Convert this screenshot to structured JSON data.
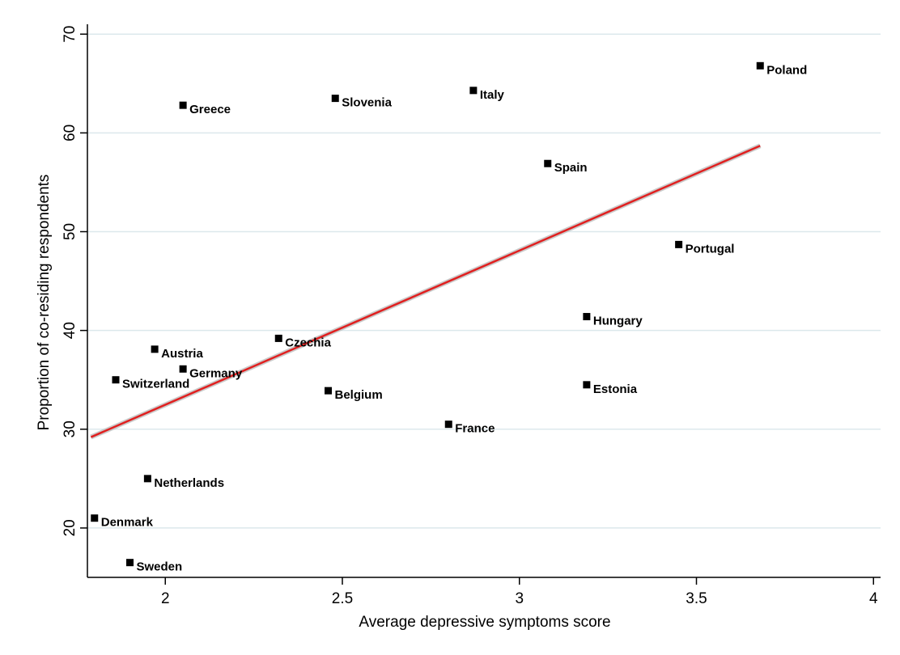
{
  "chart_data": {
    "type": "scatter",
    "xlabel": "Average depressive symptoms score",
    "ylabel": "Proportion of co-residing respondents",
    "xlim": [
      1.78,
      4.02
    ],
    "ylim": [
      15,
      71
    ],
    "xticks": [
      2,
      2.5,
      3,
      3.5,
      4
    ],
    "xtick_labels": [
      "2",
      "2.5",
      "3",
      "3.5",
      "4"
    ],
    "yticks": [
      20,
      30,
      40,
      50,
      60,
      70
    ],
    "ytick_labels": [
      "20",
      "30",
      "40",
      "50",
      "60",
      "70"
    ],
    "grid": "horizontal",
    "point_color": "#000000",
    "fit_line_color": "#e02020",
    "fit_ci_color": "#bfbfbf",
    "points": [
      {
        "label": "Poland",
        "x": 3.68,
        "y": 66.8
      },
      {
        "label": "Greece",
        "x": 2.05,
        "y": 62.8
      },
      {
        "label": "Slovenia",
        "x": 2.48,
        "y": 63.5
      },
      {
        "label": "Italy",
        "x": 2.87,
        "y": 64.3
      },
      {
        "label": "Spain",
        "x": 3.08,
        "y": 56.9
      },
      {
        "label": "Portugal",
        "x": 3.45,
        "y": 48.7
      },
      {
        "label": "Hungary",
        "x": 3.19,
        "y": 41.4
      },
      {
        "label": "Czechia",
        "x": 2.32,
        "y": 39.2
      },
      {
        "label": "Austria",
        "x": 1.97,
        "y": 38.1
      },
      {
        "label": "Germany",
        "x": 2.05,
        "y": 36.1
      },
      {
        "label": "Switzerland",
        "x": 1.86,
        "y": 35.0
      },
      {
        "label": "Belgium",
        "x": 2.46,
        "y": 33.9
      },
      {
        "label": "Estonia",
        "x": 3.19,
        "y": 34.5
      },
      {
        "label": "France",
        "x": 2.8,
        "y": 30.5
      },
      {
        "label": "Netherlands",
        "x": 1.95,
        "y": 25.0
      },
      {
        "label": "Denmark",
        "x": 1.8,
        "y": 21.0
      },
      {
        "label": "Sweden",
        "x": 1.9,
        "y": 16.5
      }
    ],
    "fit_line": {
      "x": [
        1.79,
        3.68
      ],
      "y": [
        29.2,
        58.7
      ]
    }
  }
}
